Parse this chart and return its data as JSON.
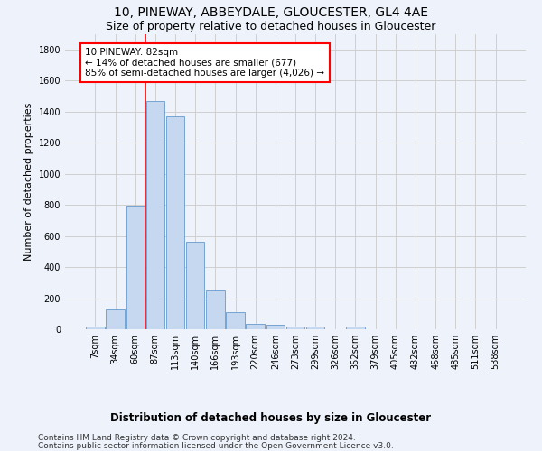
{
  "title1": "10, PINEWAY, ABBEYDALE, GLOUCESTER, GL4 4AE",
  "title2": "Size of property relative to detached houses in Gloucester",
  "xlabel": "Distribution of detached houses by size in Gloucester",
  "ylabel": "Number of detached properties",
  "bar_values": [
    15,
    130,
    795,
    1470,
    1370,
    560,
    250,
    110,
    35,
    30,
    20,
    15,
    0,
    20,
    0,
    0,
    0,
    0,
    0,
    0,
    0
  ],
  "categories": [
    "7sqm",
    "34sqm",
    "60sqm",
    "87sqm",
    "113sqm",
    "140sqm",
    "166sqm",
    "193sqm",
    "220sqm",
    "246sqm",
    "273sqm",
    "299sqm",
    "326sqm",
    "352sqm",
    "379sqm",
    "405sqm",
    "432sqm",
    "458sqm",
    "485sqm",
    "511sqm",
    "538sqm"
  ],
  "bar_color": "#c5d8f0",
  "bar_edge_color": "#6699cc",
  "vline_color": "red",
  "vline_x": 2.5,
  "annotation_text": "10 PINEWAY: 82sqm\n← 14% of detached houses are smaller (677)\n85% of semi-detached houses are larger (4,026) →",
  "annotation_box_color": "white",
  "annotation_box_edge_color": "red",
  "ylim": [
    0,
    1900
  ],
  "yticks": [
    0,
    200,
    400,
    600,
    800,
    1000,
    1200,
    1400,
    1600,
    1800
  ],
  "grid_color": "#cccccc",
  "background_color": "#eef2fb",
  "footer1": "Contains HM Land Registry data © Crown copyright and database right 2024.",
  "footer2": "Contains public sector information licensed under the Open Government Licence v3.0.",
  "title1_fontsize": 10,
  "title2_fontsize": 9,
  "xlabel_fontsize": 8.5,
  "ylabel_fontsize": 8,
  "tick_fontsize": 7,
  "footer_fontsize": 6.5,
  "annotation_fontsize": 7.5
}
